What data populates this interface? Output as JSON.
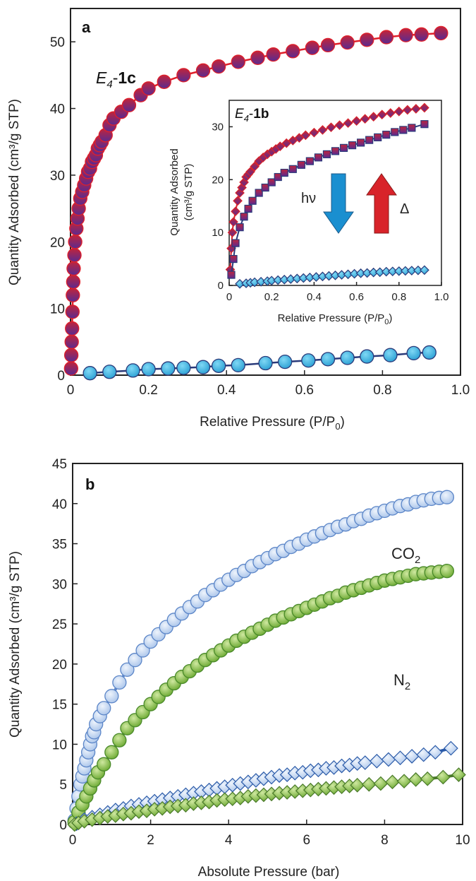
{
  "chart_data": [
    {
      "panel": "a",
      "type": "scatter",
      "xlabel_main": "Relative Pressure (P/P",
      "xlabel_sub": "0",
      "xlabel_close": ")",
      "ylabel": "Quantity Adsorbed (cm³/g STP)",
      "xlim": [
        0,
        1.0
      ],
      "ylim": [
        0,
        55
      ],
      "xticks": [
        "0",
        "0.2",
        "0.4",
        "0.6",
        "0.8",
        "1.0"
      ],
      "xtick_values": [
        0,
        0.2,
        0.4,
        0.6,
        0.8,
        1.0
      ],
      "yticks": [
        "0",
        "10",
        "20",
        "30",
        "40",
        "50"
      ],
      "ytick_values": [
        0,
        10,
        20,
        30,
        40,
        50
      ],
      "annotation": {
        "italic": "E",
        "sub": "4",
        "rest": "-",
        "bold": "1c"
      },
      "series": [
        {
          "marker": "circle",
          "color": "#e0202a",
          "fill": "#8a2a8c",
          "x": [
            0.0015,
            0.002,
            0.003,
            0.004,
            0.005,
            0.006,
            0.007,
            0.008,
            0.01,
            0.012,
            0.015,
            0.018,
            0.021,
            0.025,
            0.03,
            0.035,
            0.04,
            0.045,
            0.05,
            0.055,
            0.06,
            0.065,
            0.07,
            0.075,
            0.08,
            0.09,
            0.1,
            0.11,
            0.13,
            0.15,
            0.18,
            0.2,
            0.24,
            0.29,
            0.34,
            0.38,
            0.43,
            0.48,
            0.52,
            0.57,
            0.62,
            0.66,
            0.71,
            0.76,
            0.81,
            0.86,
            0.9,
            0.95
          ],
          "y": [
            1,
            3,
            5,
            7,
            9.5,
            12,
            14,
            16,
            18,
            20,
            22,
            23.5,
            25,
            26.5,
            27.5,
            28.5,
            29.5,
            30.5,
            31,
            32,
            32.5,
            33,
            34,
            34.5,
            35,
            36,
            37.5,
            38.5,
            39.5,
            40.5,
            42,
            43,
            44,
            45,
            45.7,
            46.3,
            47,
            47.6,
            48.1,
            48.6,
            49.1,
            49.5,
            49.9,
            50.3,
            50.7,
            51,
            51.1,
            51.3
          ]
        },
        {
          "marker": "circle",
          "color": "#2a3a7a",
          "fill": "#46c0e6",
          "x": [
            0.05,
            0.1,
            0.16,
            0.2,
            0.25,
            0.29,
            0.34,
            0.38,
            0.43,
            0.5,
            0.55,
            0.61,
            0.66,
            0.71,
            0.76,
            0.82,
            0.88,
            0.92
          ],
          "y": [
            0.3,
            0.5,
            0.7,
            0.9,
            1.0,
            1.1,
            1.2,
            1.4,
            1.5,
            1.8,
            2.0,
            2.2,
            2.4,
            2.6,
            2.8,
            3.0,
            3.3,
            3.4
          ]
        }
      ],
      "inset": {
        "xlabel_main": "Relative Pressure (P/P",
        "xlabel_sub": "0",
        "xlabel_close": ")",
        "ylabel_line1": "Quantity Adsorbed",
        "ylabel_line2": "(cm³/g STP)",
        "xlim": [
          0,
          1.0
        ],
        "ylim": [
          0,
          35
        ],
        "xticks": [
          "0",
          "0.2",
          "0.4",
          "0.6",
          "0.8",
          "1.0"
        ],
        "xtick_values": [
          0,
          0.2,
          0.4,
          0.6,
          0.8,
          1.0
        ],
        "yticks": [
          "0",
          "10",
          "20",
          "30"
        ],
        "ytick_values": [
          0,
          10,
          20,
          30
        ],
        "annotation": {
          "italic": "E",
          "sub": "4",
          "rest": "-",
          "bold": "1b"
        },
        "label_hv": "hν",
        "label_delta": "Δ",
        "arrow_down_color": "#1a8fd0",
        "arrow_up_color": "#d8232a",
        "series": [
          {
            "marker": "diamond",
            "color": "#d8232a",
            "fill": "#a0304a",
            "x": [
              0.005,
              0.01,
              0.015,
              0.02,
              0.03,
              0.04,
              0.05,
              0.06,
              0.07,
              0.08,
              0.09,
              0.1,
              0.12,
              0.14,
              0.16,
              0.18,
              0.2,
              0.22,
              0.24,
              0.27,
              0.3,
              0.33,
              0.36,
              0.4,
              0.44,
              0.48,
              0.52,
              0.56,
              0.6,
              0.64,
              0.68,
              0.72,
              0.76,
              0.8,
              0.84,
              0.88,
              0.92
            ],
            "y": [
              3,
              7,
              10,
              12,
              14,
              16,
              17.5,
              18.5,
              19.5,
              20.5,
              21,
              21.5,
              22.5,
              23.5,
              24.2,
              24.8,
              25.3,
              25.8,
              26.3,
              26.9,
              27.4,
              27.9,
              28.4,
              28.9,
              29.4,
              29.9,
              30.3,
              30.7,
              31.1,
              31.5,
              31.9,
              32.3,
              32.6,
              32.9,
              33.2,
              33.4,
              33.6
            ]
          },
          {
            "marker": "square",
            "color": "#2a3a7a",
            "fill": "#9a2f6a",
            "x": [
              0.01,
              0.02,
              0.03,
              0.05,
              0.07,
              0.09,
              0.11,
              0.14,
              0.17,
              0.2,
              0.23,
              0.26,
              0.3,
              0.34,
              0.38,
              0.42,
              0.46,
              0.5,
              0.54,
              0.58,
              0.62,
              0.66,
              0.7,
              0.74,
              0.78,
              0.82,
              0.86,
              0.92
            ],
            "y": [
              2,
              5,
              8,
              11,
              13,
              14.5,
              16,
              17.5,
              18.5,
              19.5,
              20.5,
              21.3,
              22,
              22.8,
              23.5,
              24.2,
              24.8,
              25.4,
              26,
              26.5,
              27,
              27.5,
              28,
              28.5,
              29,
              29.4,
              29.8,
              30.5
            ]
          },
          {
            "marker": "diamond",
            "color": "#2a3a7a",
            "fill": "#46b8e6",
            "x": [
              0.05,
              0.08,
              0.1,
              0.12,
              0.15,
              0.18,
              0.2,
              0.23,
              0.26,
              0.29,
              0.32,
              0.35,
              0.38,
              0.41,
              0.44,
              0.47,
              0.5,
              0.53,
              0.56,
              0.59,
              0.62,
              0.65,
              0.68,
              0.71,
              0.74,
              0.77,
              0.8,
              0.83,
              0.86,
              0.89,
              0.92
            ],
            "y": [
              0.3,
              0.4,
              0.5,
              0.6,
              0.7,
              0.8,
              0.9,
              1.0,
              1.1,
              1.2,
              1.3,
              1.4,
              1.5,
              1.6,
              1.7,
              1.8,
              1.9,
              2.0,
              2.1,
              2.2,
              2.3,
              2.35,
              2.45,
              2.5,
              2.6,
              2.65,
              2.7,
              2.75,
              2.8,
              2.85,
              2.9
            ]
          }
        ]
      }
    },
    {
      "panel": "b",
      "type": "scatter",
      "xlabel": "Absolute Pressure (bar)",
      "ylabel": "Quantity Adsorbed (cm³/g STP)",
      "xlim": [
        0,
        10
      ],
      "ylim": [
        0,
        45
      ],
      "xticks": [
        "0",
        "2",
        "4",
        "6",
        "8",
        "10"
      ],
      "xtick_values": [
        0,
        2,
        4,
        6,
        8,
        10
      ],
      "yticks": [
        "0",
        "5",
        "10",
        "15",
        "20",
        "25",
        "30",
        "35",
        "40",
        "45"
      ],
      "ytick_values": [
        0,
        5,
        10,
        15,
        20,
        25,
        30,
        35,
        40,
        45
      ],
      "label_co2": "CO",
      "label_co2_sub": "2",
      "label_n2": "N",
      "label_n2_sub": "2",
      "series": [
        {
          "marker": "circle",
          "color": "#5c86c8",
          "fill": "#c6d8f2",
          "x": [
            0.05,
            0.1,
            0.15,
            0.2,
            0.25,
            0.3,
            0.35,
            0.4,
            0.45,
            0.5,
            0.55,
            0.6,
            0.7,
            0.8,
            1.0,
            1.2,
            1.4,
            1.6,
            1.8,
            2.0,
            2.2,
            2.4,
            2.6,
            2.8,
            3.0,
            3.2,
            3.4,
            3.6,
            3.8,
            4.0,
            4.2,
            4.4,
            4.6,
            4.8,
            5.0,
            5.2,
            5.4,
            5.6,
            5.8,
            6.0,
            6.2,
            6.4,
            6.6,
            6.8,
            7.0,
            7.2,
            7.4,
            7.6,
            7.8,
            8.0,
            8.2,
            8.4,
            8.6,
            8.8,
            9.0,
            9.2,
            9.4,
            9.6
          ],
          "y": [
            0.5,
            2,
            3.5,
            5,
            6,
            7,
            8,
            9,
            10,
            11,
            11.5,
            12.5,
            13.5,
            14.5,
            16,
            17.7,
            19.3,
            20.5,
            21.7,
            22.8,
            23.7,
            24.6,
            25.5,
            26.3,
            27.1,
            27.8,
            28.6,
            29.2,
            29.9,
            30.5,
            31.1,
            31.6,
            32.2,
            32.7,
            33.2,
            33.7,
            34.1,
            34.6,
            35,
            35.5,
            35.9,
            36.3,
            36.7,
            37.1,
            37.4,
            37.8,
            38.1,
            38.5,
            38.8,
            39.1,
            39.4,
            39.7,
            39.9,
            40.2,
            40.4,
            40.6,
            40.7,
            40.8
          ]
        },
        {
          "marker": "circle",
          "color": "#4a8a2a",
          "fill": "#8cc44a",
          "x": [
            0.05,
            0.15,
            0.25,
            0.35,
            0.45,
            0.55,
            0.65,
            0.8,
            1.0,
            1.2,
            1.4,
            1.6,
            1.8,
            2.0,
            2.2,
            2.4,
            2.6,
            2.8,
            3.0,
            3.2,
            3.4,
            3.6,
            3.8,
            4.0,
            4.2,
            4.4,
            4.6,
            4.8,
            5.0,
            5.2,
            5.4,
            5.6,
            5.8,
            6.0,
            6.2,
            6.4,
            6.6,
            6.8,
            7.0,
            7.2,
            7.4,
            7.6,
            7.8,
            8.0,
            8.2,
            8.4,
            8.6,
            8.8,
            9.0,
            9.2,
            9.4,
            9.6
          ],
          "y": [
            0.3,
            1.5,
            2.5,
            3.5,
            4.5,
            5.5,
            6.5,
            7.5,
            9,
            10.5,
            12,
            13,
            14,
            15,
            15.9,
            16.8,
            17.6,
            18.4,
            19.1,
            19.8,
            20.5,
            21.1,
            21.7,
            22.3,
            22.9,
            23.4,
            23.9,
            24.4,
            24.9,
            25.4,
            25.8,
            26.2,
            26.6,
            27,
            27.4,
            27.8,
            28.2,
            28.5,
            28.9,
            29.2,
            29.5,
            29.8,
            30.1,
            30.4,
            30.6,
            30.8,
            31,
            31.2,
            31.3,
            31.4,
            31.5,
            31.6
          ]
        },
        {
          "marker": "diamond",
          "color": "#2a5aa8",
          "fill": "#b8d0f0",
          "x": [
            0.1,
            0.3,
            0.5,
            0.7,
            0.9,
            1.1,
            1.3,
            1.5,
            1.7,
            1.9,
            2.1,
            2.3,
            2.5,
            2.7,
            2.9,
            3.1,
            3.3,
            3.5,
            3.7,
            3.9,
            4.1,
            4.3,
            4.5,
            4.7,
            4.9,
            5.1,
            5.3,
            5.5,
            5.7,
            5.9,
            6.1,
            6.3,
            6.5,
            6.7,
            6.9,
            7.1,
            7.3,
            7.5,
            7.8,
            8.1,
            8.4,
            8.7,
            9.0,
            9.3,
            9.7
          ],
          "y": [
            0.1,
            0.6,
            0.9,
            1.2,
            1.5,
            1.8,
            2.0,
            2.3,
            2.5,
            2.7,
            2.9,
            3.1,
            3.3,
            3.5,
            3.7,
            3.9,
            4.1,
            4.3,
            4.5,
            4.7,
            4.9,
            5.1,
            5.3,
            5.5,
            5.7,
            5.9,
            6.1,
            6.2,
            6.4,
            6.5,
            6.7,
            6.8,
            7.0,
            7.1,
            7.3,
            7.4,
            7.6,
            7.7,
            7.9,
            8.1,
            8.3,
            8.5,
            8.7,
            9.0,
            9.5
          ]
        },
        {
          "marker": "diamond",
          "color": "#4a7a2a",
          "fill": "#8cc050",
          "x": [
            0.05,
            0.15,
            0.3,
            0.5,
            0.7,
            0.9,
            1.1,
            1.3,
            1.5,
            1.7,
            1.9,
            2.1,
            2.3,
            2.5,
            2.7,
            2.9,
            3.1,
            3.3,
            3.5,
            3.7,
            3.9,
            4.1,
            4.3,
            4.5,
            4.7,
            4.9,
            5.1,
            5.3,
            5.5,
            5.7,
            5.9,
            6.1,
            6.3,
            6.5,
            6.7,
            6.9,
            7.1,
            7.3,
            7.6,
            7.9,
            8.2,
            8.5,
            8.8,
            9.1,
            9.5,
            9.9
          ],
          "y": [
            0,
            0.2,
            0.4,
            0.6,
            0.8,
            1.0,
            1.1,
            1.3,
            1.4,
            1.6,
            1.7,
            1.9,
            2.0,
            2.2,
            2.3,
            2.4,
            2.6,
            2.7,
            2.8,
            3.0,
            3.1,
            3.2,
            3.3,
            3.5,
            3.6,
            3.7,
            3.8,
            3.9,
            4.0,
            4.1,
            4.2,
            4.3,
            4.4,
            4.5,
            4.6,
            4.7,
            4.8,
            4.9,
            5.0,
            5.1,
            5.3,
            5.4,
            5.6,
            5.7,
            5.9,
            6.2
          ]
        }
      ]
    }
  ]
}
